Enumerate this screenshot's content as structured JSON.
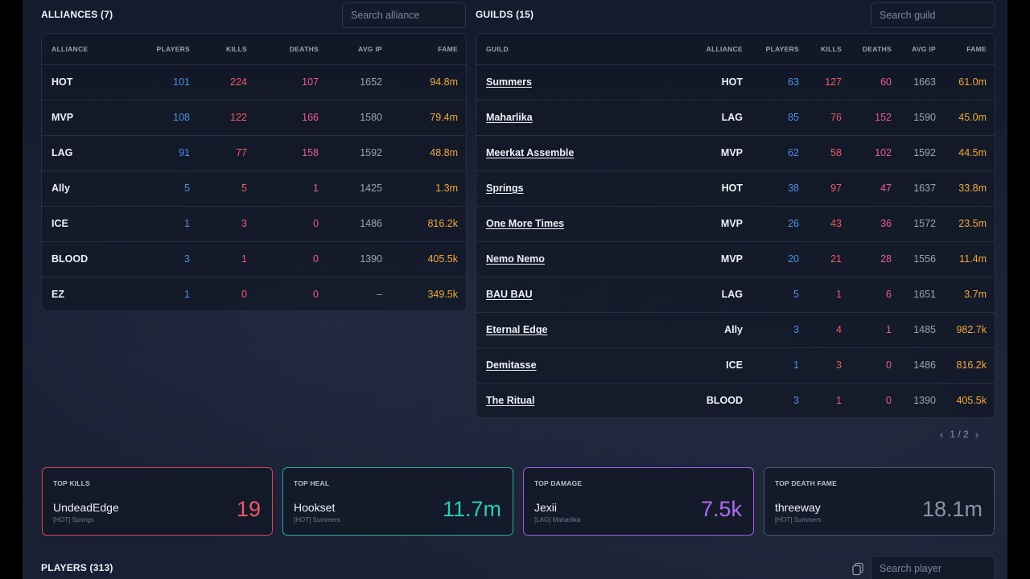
{
  "alliances": {
    "title": "ALLIANCES (7)",
    "search_placeholder": "Search alliance",
    "headers": [
      "ALLIANCE",
      "PLAYERS",
      "KILLS",
      "DEATHS",
      "AVG IP",
      "FAME"
    ],
    "rows": [
      {
        "name": "HOT",
        "players": "101",
        "kills": "224",
        "deaths": "107",
        "avg_ip": "1652",
        "fame": "94.8m"
      },
      {
        "name": "MVP",
        "players": "108",
        "kills": "122",
        "deaths": "166",
        "avg_ip": "1580",
        "fame": "79.4m"
      },
      {
        "name": "LAG",
        "players": "91",
        "kills": "77",
        "deaths": "158",
        "avg_ip": "1592",
        "fame": "48.8m"
      },
      {
        "name": "Ally",
        "players": "5",
        "kills": "5",
        "deaths": "1",
        "avg_ip": "1425",
        "fame": "1.3m"
      },
      {
        "name": "ICE",
        "players": "1",
        "kills": "3",
        "deaths": "0",
        "avg_ip": "1486",
        "fame": "816.2k"
      },
      {
        "name": "BLOOD",
        "players": "3",
        "kills": "1",
        "deaths": "0",
        "avg_ip": "1390",
        "fame": "405.5k"
      },
      {
        "name": "EZ",
        "players": "1",
        "kills": "0",
        "deaths": "0",
        "avg_ip": "–",
        "fame": "349.5k"
      }
    ]
  },
  "guilds": {
    "title": "GUILDS (15)",
    "search_placeholder": "Search guild",
    "headers": [
      "GUILD",
      "ALLIANCE",
      "PLAYERS",
      "KILLS",
      "DEATHS",
      "AVG IP",
      "FAME"
    ],
    "rows": [
      {
        "name": "Summers",
        "alliance": "HOT",
        "players": "63",
        "kills": "127",
        "deaths": "60",
        "avg_ip": "1663",
        "fame": "61.0m"
      },
      {
        "name": "Maharlika",
        "alliance": "LAG",
        "players": "85",
        "kills": "76",
        "deaths": "152",
        "avg_ip": "1590",
        "fame": "45.0m"
      },
      {
        "name": "Meerkat Assemble",
        "alliance": "MVP",
        "players": "62",
        "kills": "58",
        "deaths": "102",
        "avg_ip": "1592",
        "fame": "44.5m"
      },
      {
        "name": "Springs",
        "alliance": "HOT",
        "players": "38",
        "kills": "97",
        "deaths": "47",
        "avg_ip": "1637",
        "fame": "33.8m"
      },
      {
        "name": "One More Times",
        "alliance": "MVP",
        "players": "26",
        "kills": "43",
        "deaths": "36",
        "avg_ip": "1572",
        "fame": "23.5m"
      },
      {
        "name": "Nemo Nemo",
        "alliance": "MVP",
        "players": "20",
        "kills": "21",
        "deaths": "28",
        "avg_ip": "1556",
        "fame": "11.4m"
      },
      {
        "name": "BAU BAU",
        "alliance": "LAG",
        "players": "5",
        "kills": "1",
        "deaths": "6",
        "avg_ip": "1651",
        "fame": "3.7m"
      },
      {
        "name": "Eternal Edge",
        "alliance": "Ally",
        "players": "3",
        "kills": "4",
        "deaths": "1",
        "avg_ip": "1485",
        "fame": "982.7k"
      },
      {
        "name": "Demitasse",
        "alliance": "ICE",
        "players": "1",
        "kills": "3",
        "deaths": "0",
        "avg_ip": "1486",
        "fame": "816.2k"
      },
      {
        "name": "The Ritual",
        "alliance": "BLOOD",
        "players": "3",
        "kills": "1",
        "deaths": "0",
        "avg_ip": "1390",
        "fame": "405.5k"
      }
    ],
    "pagination": {
      "text": "1 / 2",
      "prev_icon": "chevron-left-icon",
      "next_icon": "chevron-right-icon"
    }
  },
  "top_cards": [
    {
      "title": "TOP KILLS",
      "player": "UndeadEdge",
      "sub": "[HOT] Springs",
      "value": "19",
      "color": "#f0566a"
    },
    {
      "title": "TOP HEAL",
      "player": "Hookset",
      "sub": "[HOT] Summers",
      "value": "11.7m",
      "color": "#2ec9b6"
    },
    {
      "title": "TOP DAMAGE",
      "player": "Jexii",
      "sub": "[LAG] Maharlika",
      "value": "7.5k",
      "color": "#b06cf2"
    },
    {
      "title": "TOP DEATH FAME",
      "player": "threeway",
      "sub": "[HOT] Summers",
      "value": "18.1m",
      "color": "#8b93a5"
    }
  ],
  "players": {
    "title": "PLAYERS (313)",
    "search_placeholder": "Search player",
    "copy_icon": "copy-icon"
  },
  "colors": {
    "players": "#4f8fe8",
    "kills": "#f05a6a",
    "deaths": "#ec5b9e",
    "fame": "#f2a93b",
    "card_borders": [
      "#d94456",
      "#27a99c",
      "#9a5ae0",
      "#4b556b"
    ]
  }
}
